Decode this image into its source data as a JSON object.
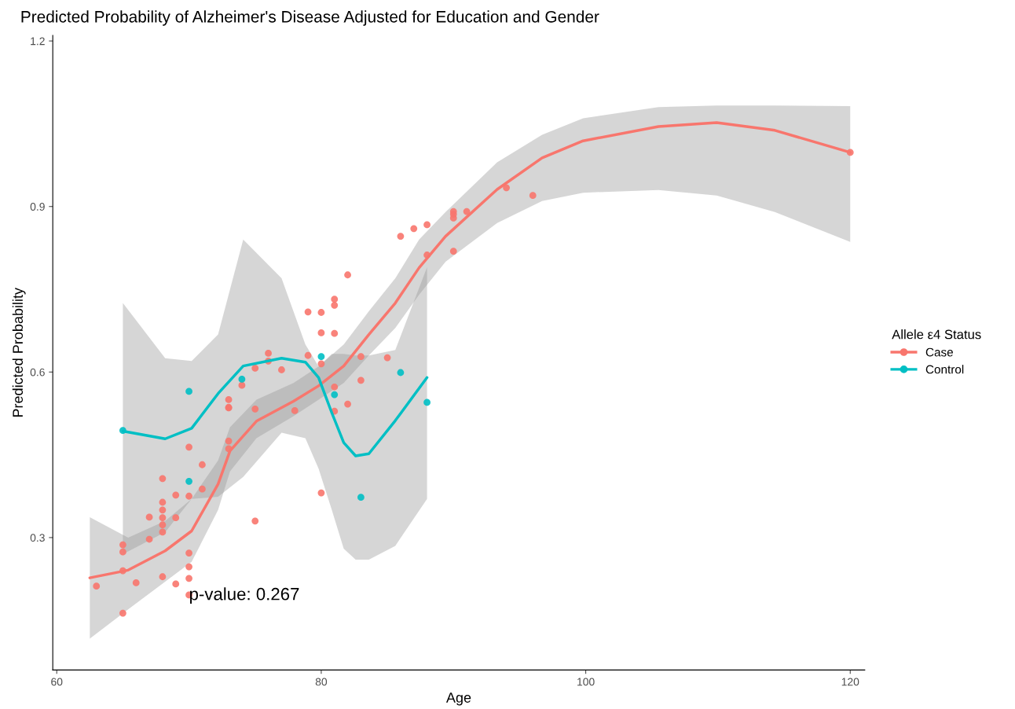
{
  "chart_data": {
    "type": "scatter",
    "title": "Predicted Probability of Alzheimer's Disease Adjusted for Education and Gender",
    "xlabel": "Age",
    "ylabel": "Predicted Probability",
    "legend_title": "Allele ε4 Status",
    "legend": "right",
    "grid": false,
    "marker": "circle",
    "xlim": [
      59.7,
      121.1
    ],
    "ylim": [
      0.06,
      1.21
    ],
    "xticks": [
      60,
      80,
      100,
      120
    ],
    "yticks": [
      0.3,
      0.6,
      0.9,
      1.2
    ],
    "annotations": [
      {
        "text": "p-value: 0.267",
        "x": 70,
        "y": 0.195
      }
    ],
    "series": [
      {
        "type": "line",
        "marker": "none",
        "color": "#f8766d",
        "x": [
          62.5,
          65.4,
          68.2,
          70.2,
          72.2,
          73.1,
          75.1,
          77.9,
          79.8,
          81.7,
          83.6,
          85.6,
          87.4,
          89.4,
          93.3,
          96.7,
          99.8,
          105.5,
          109.9,
          114.3,
          120
        ],
        "values": [
          0.227,
          0.241,
          0.276,
          0.312,
          0.397,
          0.457,
          0.511,
          0.547,
          0.575,
          0.611,
          0.668,
          0.725,
          0.789,
          0.846,
          0.931,
          0.988,
          1.019,
          1.045,
          1.052,
          1.038,
          0.998
        ],
        "lower": [
          0.117,
          0.17,
          0.22,
          0.256,
          0.35,
          0.42,
          0.48,
          0.52,
          0.55,
          0.58,
          0.63,
          0.68,
          0.74,
          0.8,
          0.87,
          0.91,
          0.925,
          0.93,
          0.92,
          0.89,
          0.836
        ],
        "upper": [
          0.337,
          0.3,
          0.33,
          0.37,
          0.44,
          0.5,
          0.55,
          0.58,
          0.61,
          0.65,
          0.71,
          0.77,
          0.84,
          0.89,
          0.98,
          1.03,
          1.06,
          1.08,
          1.083,
          1.083,
          1.082
        ]
      },
      {
        "type": "line",
        "marker": "none",
        "color": "#00bfc4",
        "x": [
          65,
          68.2,
          70.2,
          72.2,
          74.1,
          77,
          78.8,
          79.8,
          80.8,
          81.7,
          82.6,
          83.6,
          85.6,
          88
        ],
        "values": [
          0.493,
          0.479,
          0.498,
          0.561,
          0.611,
          0.625,
          0.618,
          0.59,
          0.526,
          0.472,
          0.448,
          0.452,
          0.512,
          0.59
        ],
        "lower": [
          0.27,
          0.31,
          0.37,
          0.374,
          0.41,
          0.49,
          0.48,
          0.425,
          0.35,
          0.28,
          0.26,
          0.26,
          0.285,
          0.37
        ],
        "upper": [
          0.725,
          0.625,
          0.62,
          0.668,
          0.84,
          0.77,
          0.65,
          0.61,
          0.633,
          0.633,
          0.63,
          0.63,
          0.64,
          0.79
        ]
      },
      {
        "name": "Case",
        "color": "#f8766d",
        "x": [
          63,
          65,
          65,
          65,
          65,
          66,
          67,
          67,
          68,
          68,
          68,
          68,
          68,
          68,
          68,
          69,
          69,
          69,
          70,
          70,
          70,
          70,
          70,
          70,
          71,
          71,
          73,
          73,
          73,
          75,
          75,
          78,
          80,
          82,
          81,
          81,
          79,
          80,
          80,
          81,
          76,
          79,
          83,
          85,
          76,
          75,
          77,
          80,
          74,
          83,
          81,
          73,
          73,
          82,
          81,
          86,
          87,
          88,
          88,
          90,
          90,
          90,
          90,
          91,
          94,
          96,
          120
        ],
        "values": [
          0.212,
          0.287,
          0.274,
          0.24,
          0.163,
          0.218,
          0.337,
          0.297,
          0.407,
          0.364,
          0.35,
          0.336,
          0.323,
          0.31,
          0.229,
          0.377,
          0.336,
          0.216,
          0.464,
          0.375,
          0.272,
          0.247,
          0.226,
          0.196,
          0.432,
          0.388,
          0.535,
          0.475,
          0.461,
          0.33,
          0.533,
          0.53,
          0.381,
          0.776,
          0.732,
          0.721,
          0.709,
          0.708,
          0.671,
          0.67,
          0.634,
          0.63,
          0.628,
          0.626,
          0.62,
          0.607,
          0.604,
          0.615,
          0.576,
          0.585,
          0.573,
          0.55,
          0.536,
          0.542,
          0.529,
          0.846,
          0.86,
          0.867,
          0.812,
          0.891,
          0.886,
          0.879,
          0.819,
          0.891,
          0.934,
          0.92,
          0.998
        ]
      },
      {
        "name": "Control",
        "color": "#00bfc4",
        "x": [
          65,
          70,
          70,
          74,
          80,
          81,
          86,
          88,
          83
        ],
        "values": [
          0.494,
          0.565,
          0.402,
          0.587,
          0.628,
          0.559,
          0.599,
          0.545,
          0.373
        ]
      }
    ]
  }
}
